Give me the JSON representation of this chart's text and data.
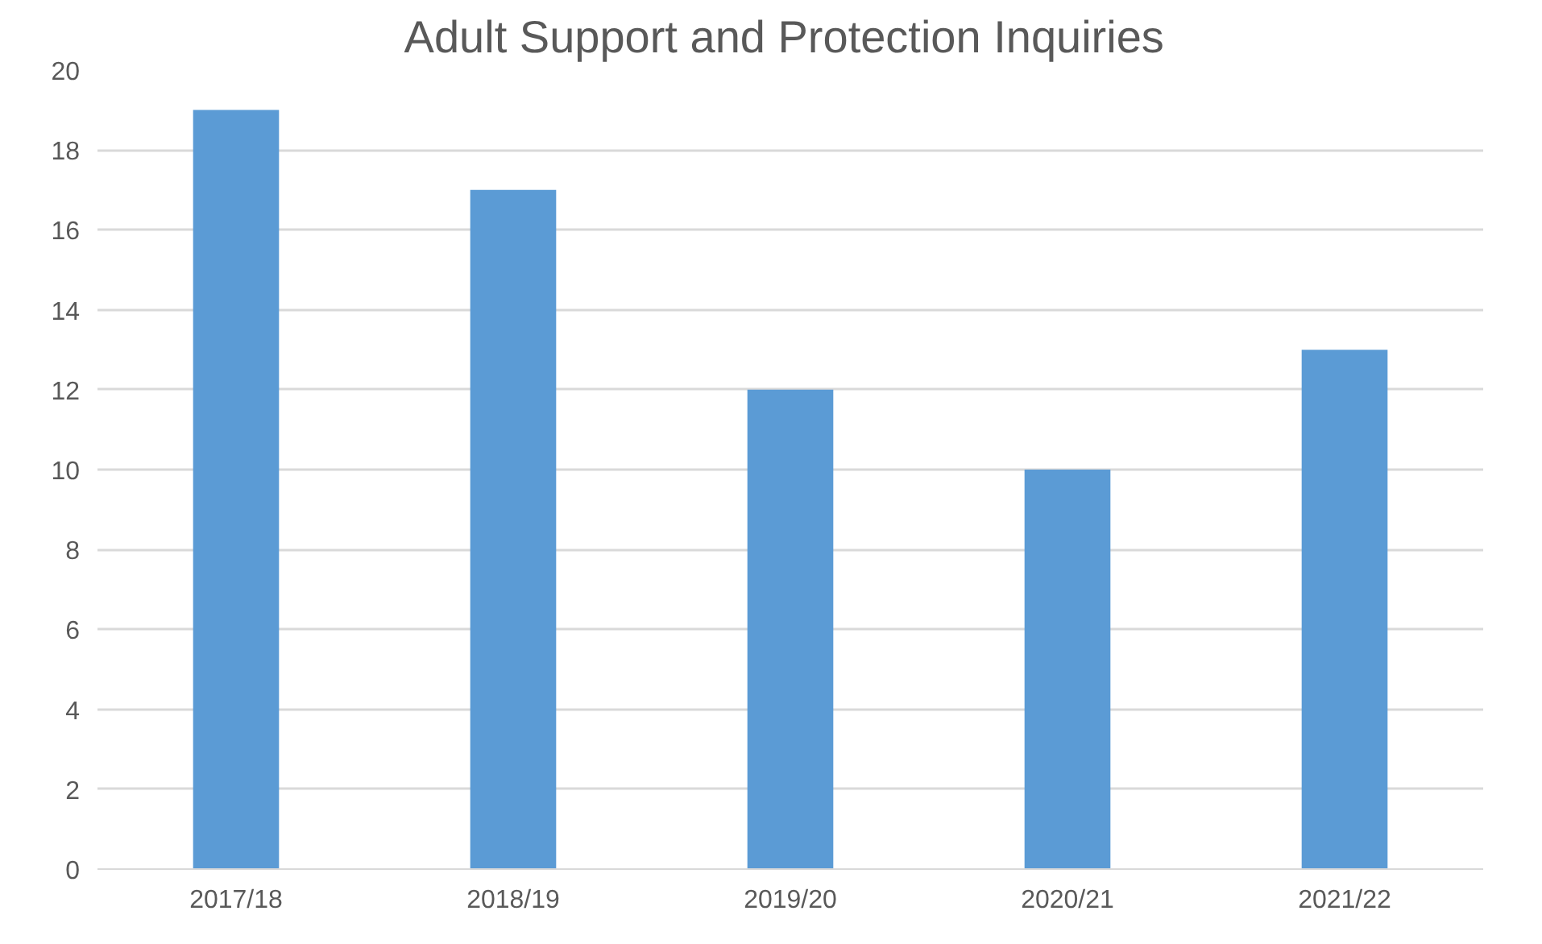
{
  "chart_data": {
    "type": "bar",
    "title": "Adult Support and Protection  Inquiries",
    "categories": [
      "2017/18",
      "2018/19",
      "2019/20",
      "2020/21",
      "2021/22"
    ],
    "values": [
      19,
      17,
      12,
      10,
      13
    ],
    "color": "#5b9bd5",
    "ylim": [
      0,
      20
    ],
    "yticks": [
      0,
      2,
      4,
      6,
      8,
      10,
      12,
      14,
      16,
      18,
      20
    ],
    "grid": "y"
  }
}
